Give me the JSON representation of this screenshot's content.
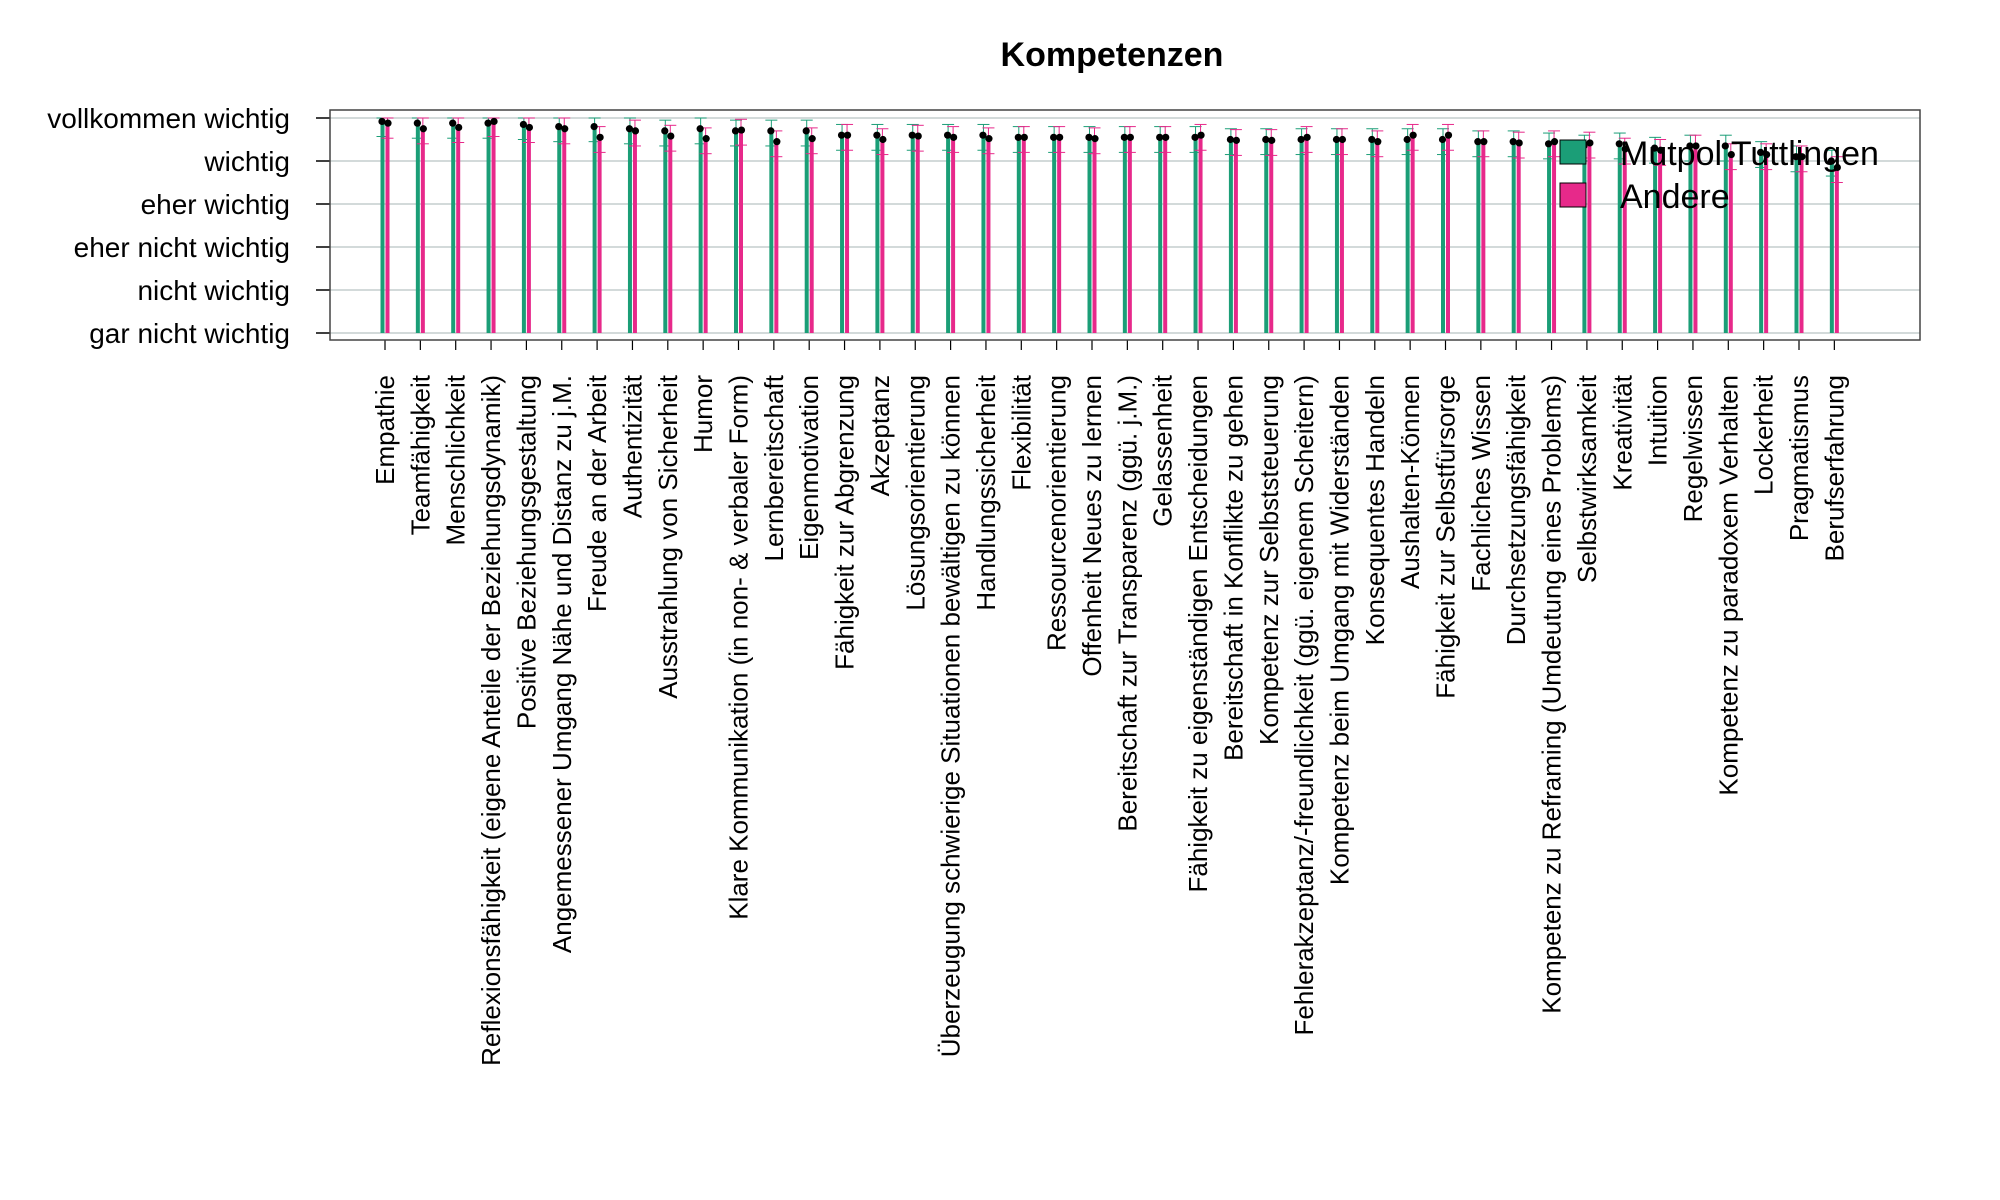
{
  "chart_data": {
    "type": "bar",
    "title": "Kompetenzen",
    "xlabel": "",
    "ylabel": "",
    "ylim": [
      1,
      6
    ],
    "y_tick_values": [
      1,
      2,
      3,
      4,
      5,
      6
    ],
    "y_tick_labels": [
      "gar nicht wichtig",
      "nicht wichtig",
      "eher nicht wichtig",
      "eher wichtig",
      "wichtig",
      "vollkommen wichtig"
    ],
    "grid": true,
    "legend_position": "top-right",
    "categories": [
      "Empathie",
      "Teamfähigkeit",
      "Menschlichkeit",
      "Reflexionsfähigkeit (eigene Anteile der Beziehungsdynamik)",
      "Positive Beziehungsgestaltung",
      "Angemessener Umgang Nähe und Distanz zu j.M.",
      "Freude an der Arbeit",
      "Authentizität",
      "Ausstrahlung von Sicherheit",
      "Humor",
      "Klare Kommunikation (in non- & verbaler Form)",
      "Lernbereitschaft",
      "Eigenmotivation",
      "Fähigkeit zur Abgrenzung",
      "Akzeptanz",
      "Lösungsorientierung",
      "Überzeugung schwierige Situationen bewältigen zu können",
      "Handlungssicherheit",
      "Flexibilität",
      "Ressourcenorientierung",
      "Offenheit Neues zu lernen",
      "Bereitschaft zur Transparenz (ggü. j.M.)",
      "Gelassenheit",
      "Fähigkeit zu eigenständigen Entscheidungen",
      "Bereitschaft in Konflikte zu gehen",
      "Kompetenz zur Selbststeuerung",
      "Fehlerakzeptanz/-freundlichkeit (ggü. eigenem Scheitern)",
      "Kompetenz beim Umgang mit Widerständen",
      "Konsequentes Handeln",
      "Aushalten-Können",
      "Fähigkeit zur Selbstfürsorge",
      "Fachliches Wissen",
      "Durchsetzungsfähigkeit",
      "Kompetenz zu Reframing (Umdeutung eines Problems)",
      "Selbstwirksamkeit",
      "Kreativität",
      "Intuition",
      "Regelwissen",
      "Kompetenz zu paradoxem Verhalten",
      "Lockerheit",
      "Pragmatismus",
      "Berufserfahrung"
    ],
    "series": [
      {
        "name": "Mutpol Tuttlingen",
        "color": "#1b9e77",
        "values": [
          5.92,
          5.88,
          5.88,
          5.88,
          5.85,
          5.8,
          5.8,
          5.75,
          5.7,
          5.75,
          5.7,
          5.7,
          5.7,
          5.6,
          5.6,
          5.6,
          5.6,
          5.6,
          5.55,
          5.55,
          5.55,
          5.55,
          5.55,
          5.55,
          5.5,
          5.5,
          5.5,
          5.5,
          5.5,
          5.5,
          5.5,
          5.45,
          5.45,
          5.4,
          5.35,
          5.4,
          5.3,
          5.35,
          5.35,
          5.2,
          5.1,
          5.0
        ]
      },
      {
        "name": "Andere",
        "color": "#e7298a",
        "values": [
          5.88,
          5.75,
          5.78,
          5.92,
          5.78,
          5.75,
          5.55,
          5.7,
          5.58,
          5.52,
          5.72,
          5.45,
          5.52,
          5.6,
          5.5,
          5.58,
          5.55,
          5.52,
          5.55,
          5.55,
          5.52,
          5.55,
          5.55,
          5.6,
          5.48,
          5.48,
          5.55,
          5.5,
          5.45,
          5.6,
          5.6,
          5.45,
          5.42,
          5.45,
          5.42,
          5.28,
          5.25,
          5.35,
          5.15,
          5.15,
          5.1,
          4.85
        ]
      }
    ]
  }
}
